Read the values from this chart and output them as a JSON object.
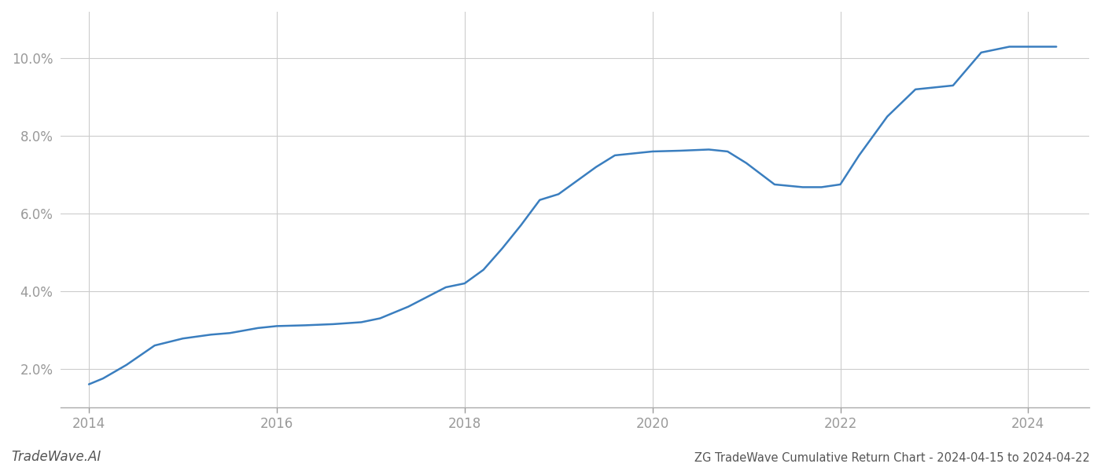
{
  "title": "ZG TradeWave Cumulative Return Chart - 2024-04-15 to 2024-04-22",
  "watermark": "TradeWave.AI",
  "line_color": "#3a7ebf",
  "line_width": 1.8,
  "background_color": "#ffffff",
  "grid_color": "#cccccc",
  "x_values": [
    2014.0,
    2014.15,
    2014.4,
    2014.7,
    2015.0,
    2015.3,
    2015.5,
    2015.8,
    2016.0,
    2016.3,
    2016.6,
    2016.9,
    2017.1,
    2017.4,
    2017.6,
    2017.8,
    2018.0,
    2018.2,
    2018.4,
    2018.6,
    2018.8,
    2019.0,
    2019.2,
    2019.4,
    2019.6,
    2019.8,
    2020.0,
    2020.3,
    2020.6,
    2020.8,
    2021.0,
    2021.3,
    2021.6,
    2021.8,
    2022.0,
    2022.2,
    2022.5,
    2022.8,
    2023.0,
    2023.2,
    2023.5,
    2023.8,
    2024.0,
    2024.3
  ],
  "y_values": [
    1.6,
    1.75,
    2.1,
    2.6,
    2.78,
    2.88,
    2.92,
    3.05,
    3.1,
    3.12,
    3.15,
    3.2,
    3.3,
    3.6,
    3.85,
    4.1,
    4.2,
    4.55,
    5.1,
    5.7,
    6.35,
    6.5,
    6.85,
    7.2,
    7.5,
    7.55,
    7.6,
    7.62,
    7.65,
    7.6,
    7.3,
    6.75,
    6.68,
    6.68,
    6.75,
    7.5,
    8.5,
    9.2,
    9.25,
    9.3,
    10.15,
    10.3,
    10.3,
    10.3
  ],
  "xlim": [
    2013.7,
    2024.65
  ],
  "ylim": [
    1.0,
    11.2
  ],
  "yticks": [
    2.0,
    4.0,
    6.0,
    8.0,
    10.0
  ],
  "xticks": [
    2014,
    2016,
    2018,
    2020,
    2022,
    2024
  ],
  "tick_color": "#999999",
  "tick_fontsize": 12,
  "title_fontsize": 10.5,
  "watermark_fontsize": 12
}
